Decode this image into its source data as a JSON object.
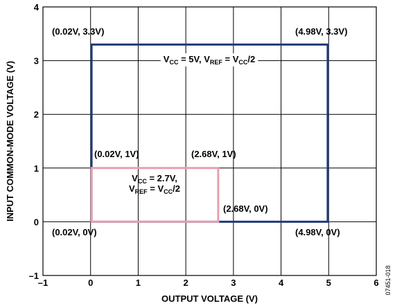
{
  "chart_data": {
    "type": "line",
    "xlabel": "OUTPUT VOLTAGE (V)",
    "ylabel": "INPUT COMMON-MODE VOLTAGE (V)",
    "xlim": [
      -1,
      6
    ],
    "ylim": [
      -1,
      4
    ],
    "xticks": [
      "–1",
      "0",
      "1",
      "2",
      "3",
      "4",
      "5",
      "6"
    ],
    "yticks": [
      "–1",
      "0",
      "1",
      "2",
      "3",
      "4"
    ],
    "grid": true,
    "figure_id": "07451-018",
    "series": [
      {
        "name": "VCC = 5V, VREF = VCC/2",
        "label_parts": [
          [
            "V",
            ""
          ],
          [
            "CC",
            "sub"
          ],
          [
            " = 5V, V",
            ""
          ],
          [
            "REF",
            "sub"
          ],
          [
            " = V",
            ""
          ],
          [
            "CC",
            "sub"
          ],
          [
            "/2",
            ""
          ]
        ],
        "color": "#1f3a7a",
        "points": [
          [
            0.02,
            0
          ],
          [
            4.98,
            0
          ],
          [
            4.98,
            3.3
          ],
          [
            0.02,
            3.3
          ]
        ]
      },
      {
        "name": "VCC = 2.7V, VREF = VCC/2",
        "label_line1": [
          [
            "V",
            ""
          ],
          [
            "CC",
            "sub"
          ],
          [
            " = 2.7V,",
            ""
          ]
        ],
        "label_line2": [
          [
            "V",
            ""
          ],
          [
            "REF",
            "sub"
          ],
          [
            " = V",
            ""
          ],
          [
            "CC",
            "sub"
          ],
          [
            "/2",
            ""
          ]
        ],
        "color": "#e8a0ae",
        "points": [
          [
            0.02,
            0
          ],
          [
            2.68,
            0
          ],
          [
            2.68,
            1
          ],
          [
            0.02,
            1
          ]
        ]
      }
    ],
    "annotations": [
      "(0.02V, 3.3V)",
      "(4.98V, 3.3V)",
      "(0.02V, 1V)",
      "(2.68V, 1V)",
      "(2.68V, 0V)",
      "(0.02V, 0V)",
      "(4.98V, 0V)"
    ]
  }
}
